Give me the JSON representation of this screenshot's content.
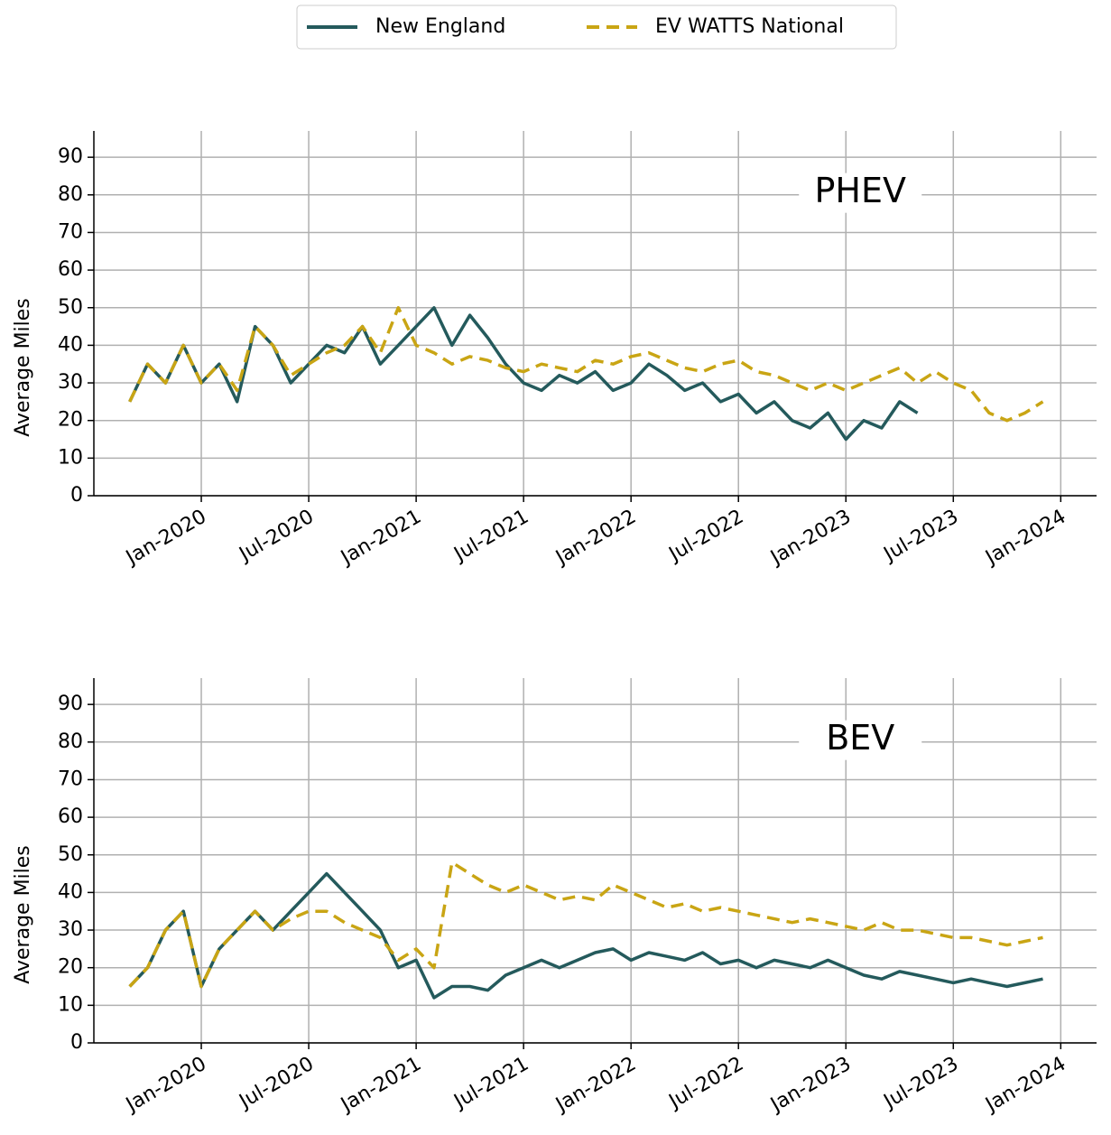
{
  "chart_data": [
    {
      "type": "line",
      "annotation": "PHEV",
      "y_label": "Average Miles",
      "x": [
        "2019-09",
        "2019-10",
        "2019-11",
        "2019-12",
        "2020-01",
        "2020-02",
        "2020-03",
        "2020-04",
        "2020-05",
        "2020-06",
        "2020-07",
        "2020-08",
        "2020-09",
        "2020-10",
        "2020-11",
        "2020-12",
        "2021-01",
        "2021-02",
        "2021-03",
        "2021-04",
        "2021-05",
        "2021-06",
        "2021-07",
        "2021-08",
        "2021-09",
        "2021-10",
        "2021-11",
        "2021-12",
        "2022-01",
        "2022-02",
        "2022-03",
        "2022-04",
        "2022-05",
        "2022-06",
        "2022-07",
        "2022-08",
        "2022-09",
        "2022-10",
        "2022-11",
        "2022-12",
        "2023-01",
        "2023-02",
        "2023-03",
        "2023-04",
        "2023-05",
        "2023-06",
        "2023-07",
        "2023-08",
        "2023-09",
        "2023-10",
        "2023-11",
        "2023-12"
      ],
      "series": [
        {
          "name": "New England",
          "color": "#245a5c",
          "style": "solid",
          "values": [
            25,
            35,
            30,
            40,
            30,
            35,
            25,
            45,
            40,
            30,
            35,
            40,
            38,
            45,
            35,
            40,
            45,
            50,
            40,
            48,
            42,
            35,
            30,
            28,
            32,
            30,
            33,
            28,
            30,
            35,
            32,
            28,
            30,
            25,
            27,
            22,
            25,
            20,
            18,
            22,
            15,
            20,
            18,
            25,
            22,
            null,
            null,
            null,
            null,
            null,
            null,
            null
          ]
        },
        {
          "name": "EV WATTS National",
          "color": "#c9a514",
          "style": "dashed",
          "values": [
            25,
            35,
            30,
            40,
            30,
            35,
            28,
            45,
            40,
            32,
            35,
            38,
            40,
            45,
            38,
            50,
            40,
            38,
            35,
            37,
            36,
            34,
            33,
            35,
            34,
            33,
            36,
            35,
            37,
            38,
            36,
            34,
            33,
            35,
            36,
            33,
            32,
            30,
            28,
            30,
            28,
            30,
            32,
            34,
            30,
            33,
            30,
            28,
            22,
            20,
            22,
            25
          ]
        }
      ],
      "xlim": [
        "2019-07",
        "2024-03"
      ],
      "xticks": [
        {
          "value": "2020-01",
          "label": "Jan-2020"
        },
        {
          "value": "2020-07",
          "label": "Jul-2020"
        },
        {
          "value": "2021-01",
          "label": "Jan-2021"
        },
        {
          "value": "2021-07",
          "label": "Jul-2021"
        },
        {
          "value": "2022-01",
          "label": "Jan-2022"
        },
        {
          "value": "2022-07",
          "label": "Jul-2022"
        },
        {
          "value": "2023-01",
          "label": "Jan-2023"
        },
        {
          "value": "2023-07",
          "label": "Jul-2023"
        },
        {
          "value": "2024-01",
          "label": "Jan-2024"
        }
      ],
      "ylim": [
        0,
        97
      ],
      "yticks": [
        0,
        10,
        20,
        30,
        40,
        50,
        60,
        70,
        80,
        90
      ],
      "grid": true
    },
    {
      "type": "line",
      "annotation": "BEV",
      "y_label": "Average Miles",
      "x": [
        "2019-09",
        "2019-10",
        "2019-11",
        "2019-12",
        "2020-01",
        "2020-02",
        "2020-03",
        "2020-04",
        "2020-05",
        "2020-06",
        "2020-07",
        "2020-08",
        "2020-09",
        "2020-10",
        "2020-11",
        "2020-12",
        "2021-01",
        "2021-02",
        "2021-03",
        "2021-04",
        "2021-05",
        "2021-06",
        "2021-07",
        "2021-08",
        "2021-09",
        "2021-10",
        "2021-11",
        "2021-12",
        "2022-01",
        "2022-02",
        "2022-03",
        "2022-04",
        "2022-05",
        "2022-06",
        "2022-07",
        "2022-08",
        "2022-09",
        "2022-10",
        "2022-11",
        "2022-12",
        "2023-01",
        "2023-02",
        "2023-03",
        "2023-04",
        "2023-05",
        "2023-06",
        "2023-07",
        "2023-08",
        "2023-09",
        "2023-10",
        "2023-11",
        "2023-12"
      ],
      "series": [
        {
          "name": "New England",
          "color": "#245a5c",
          "style": "solid",
          "values": [
            15,
            20,
            30,
            35,
            15,
            25,
            30,
            35,
            30,
            35,
            40,
            45,
            40,
            35,
            30,
            20,
            22,
            12,
            15,
            15,
            14,
            18,
            20,
            22,
            20,
            22,
            24,
            25,
            22,
            24,
            23,
            22,
            24,
            21,
            22,
            20,
            22,
            21,
            20,
            22,
            20,
            18,
            17,
            19,
            18,
            17,
            16,
            17,
            16,
            15,
            16,
            17
          ]
        },
        {
          "name": "EV WATTS National",
          "color": "#c9a514",
          "style": "dashed",
          "values": [
            15,
            20,
            30,
            35,
            15,
            25,
            30,
            35,
            30,
            33,
            35,
            35,
            32,
            30,
            28,
            22,
            25,
            20,
            48,
            45,
            42,
            40,
            42,
            40,
            38,
            39,
            38,
            42,
            40,
            38,
            36,
            37,
            35,
            36,
            35,
            34,
            33,
            32,
            33,
            32,
            31,
            30,
            32,
            30,
            30,
            29,
            28,
            28,
            27,
            26,
            27,
            28
          ]
        }
      ],
      "xlim": [
        "2019-07",
        "2024-03"
      ],
      "xticks": [
        {
          "value": "2020-01",
          "label": "Jan-2020"
        },
        {
          "value": "2020-07",
          "label": "Jul-2020"
        },
        {
          "value": "2021-01",
          "label": "Jan-2021"
        },
        {
          "value": "2021-07",
          "label": "Jul-2021"
        },
        {
          "value": "2022-01",
          "label": "Jan-2022"
        },
        {
          "value": "2022-07",
          "label": "Jul-2022"
        },
        {
          "value": "2023-01",
          "label": "Jan-2023"
        },
        {
          "value": "2023-07",
          "label": "Jul-2023"
        },
        {
          "value": "2024-01",
          "label": "Jan-2024"
        }
      ],
      "ylim": [
        0,
        97
      ],
      "yticks": [
        0,
        10,
        20,
        30,
        40,
        50,
        60,
        70,
        80,
        90
      ],
      "grid": true
    }
  ]
}
